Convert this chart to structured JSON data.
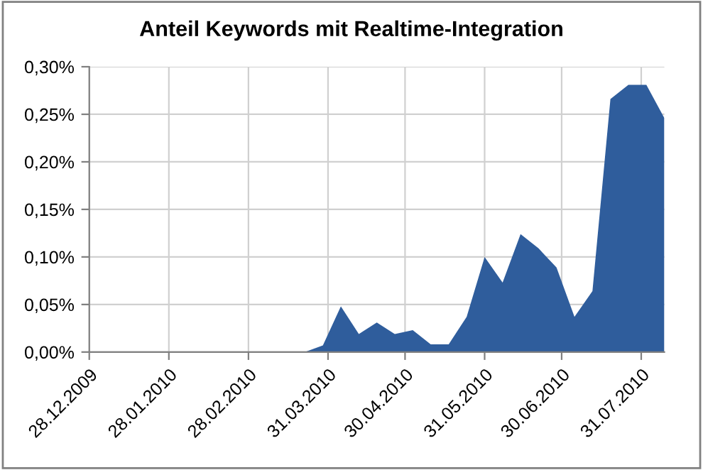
{
  "chart_data": {
    "type": "area",
    "title": "Anteil Keywords mit Realtime-Integration",
    "x": [
      "2009-12-28",
      "2010-03-22",
      "2010-03-29",
      "2010-04-05",
      "2010-04-12",
      "2010-04-19",
      "2010-04-26",
      "2010-05-03",
      "2010-05-10",
      "2010-05-17",
      "2010-05-24",
      "2010-05-31",
      "2010-06-07",
      "2010-06-14",
      "2010-06-21",
      "2010-06-28",
      "2010-07-05",
      "2010-07-12",
      "2010-07-19",
      "2010-07-26",
      "2010-08-02",
      "2010-08-09"
    ],
    "series": [
      {
        "color": "#2f5d9c",
        "values": [
          0,
          0,
          0.007,
          0.048,
          0.019,
          0.031,
          0.019,
          0.023,
          0.008,
          0.008,
          0.037,
          0.1,
          0.073,
          0.124,
          0.109,
          0.089,
          0.037,
          0.064,
          0.266,
          0.281,
          0.281,
          0.246
        ]
      }
    ],
    "xlim": [
      "2009-12-28",
      "2010-08-09"
    ],
    "xticks": [
      {
        "value": "2009-12-28",
        "label": "28.12.2009"
      },
      {
        "value": "2010-01-28",
        "label": "28.01.2010"
      },
      {
        "value": "2010-02-28",
        "label": "28.02.2010"
      },
      {
        "value": "2010-03-31",
        "label": "31.03.2010"
      },
      {
        "value": "2010-04-30",
        "label": "30.04.2010"
      },
      {
        "value": "2010-05-31",
        "label": "31.05.2010"
      },
      {
        "value": "2010-06-30",
        "label": "30.06.2010"
      },
      {
        "value": "2010-07-31",
        "label": "31.07.2010"
      }
    ],
    "ylim": [
      0,
      0.3
    ],
    "yticks": [
      {
        "value": 0,
        "label": "0,00%"
      },
      {
        "value": 0.05,
        "label": "0,05%"
      },
      {
        "value": 0.1,
        "label": "0,10%"
      },
      {
        "value": 0.15,
        "label": "0,15%"
      },
      {
        "value": 0.2,
        "label": "0,20%"
      },
      {
        "value": 0.25,
        "label": "0,25%"
      },
      {
        "value": 0.3,
        "label": "0,30%"
      }
    ],
    "grid": true
  }
}
